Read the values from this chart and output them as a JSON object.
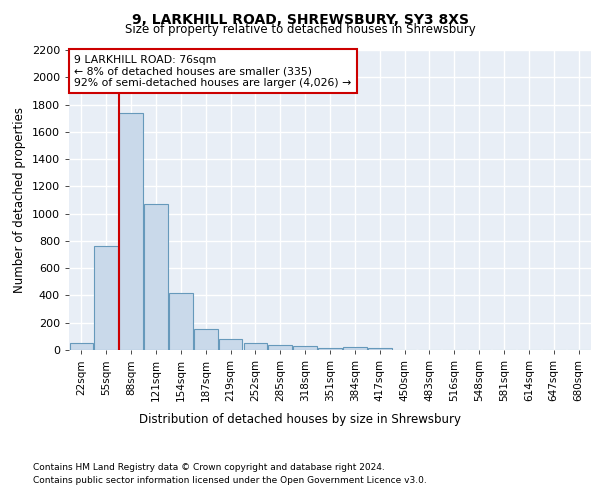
{
  "title1": "9, LARKHILL ROAD, SHREWSBURY, SY3 8XS",
  "title2": "Size of property relative to detached houses in Shrewsbury",
  "xlabel": "Distribution of detached houses by size in Shrewsbury",
  "ylabel": "Number of detached properties",
  "annotation_line1": "9 LARKHILL ROAD: 76sqm",
  "annotation_line2": "← 8% of detached houses are smaller (335)",
  "annotation_line3": "92% of semi-detached houses are larger (4,026) →",
  "bar_labels": [
    "22sqm",
    "55sqm",
    "88sqm",
    "121sqm",
    "154sqm",
    "187sqm",
    "219sqm",
    "252sqm",
    "285sqm",
    "318sqm",
    "351sqm",
    "384sqm",
    "417sqm",
    "450sqm",
    "483sqm",
    "516sqm",
    "548sqm",
    "581sqm",
    "614sqm",
    "647sqm",
    "680sqm"
  ],
  "bar_values": [
    55,
    760,
    1740,
    1070,
    420,
    155,
    80,
    48,
    40,
    30,
    15,
    20,
    15,
    0,
    0,
    0,
    0,
    0,
    0,
    0,
    0
  ],
  "bar_color": "#c9d9ea",
  "bar_edgecolor": "#6699bb",
  "vline_x": 1.5,
  "vline_color": "#cc0000",
  "ylim": [
    0,
    2200
  ],
  "yticks": [
    0,
    200,
    400,
    600,
    800,
    1000,
    1200,
    1400,
    1600,
    1800,
    2000,
    2200
  ],
  "background_color": "#e8eef6",
  "grid_color": "#ffffff",
  "annotation_box_facecolor": "#ffffff",
  "annotation_box_edgecolor": "#cc0000",
  "footnote1": "Contains HM Land Registry data © Crown copyright and database right 2024.",
  "footnote2": "Contains public sector information licensed under the Open Government Licence v3.0."
}
